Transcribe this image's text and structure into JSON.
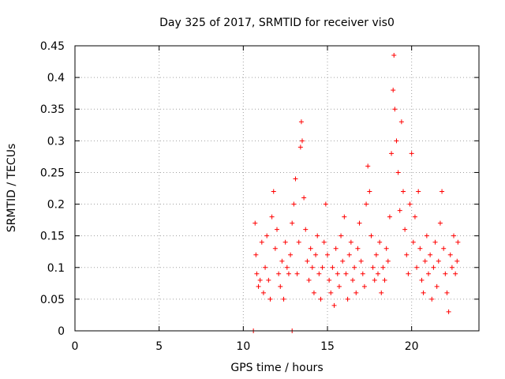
{
  "chart_data": {
    "type": "scatter",
    "title": "Day 325 of 2017, SRMTID for receiver vis0",
    "xlabel": "GPS time / hours",
    "ylabel": "SRMTID / TECUs",
    "xlim": [
      0,
      24
    ],
    "ylim": [
      0,
      0.45
    ],
    "x_ticks": [
      0,
      5,
      10,
      15,
      20
    ],
    "x_tick_labels": [
      "0",
      "5",
      "10",
      "15",
      "20"
    ],
    "y_ticks": [
      0,
      0.05,
      0.1,
      0.15,
      0.2,
      0.25,
      0.3,
      0.35,
      0.4,
      0.45
    ],
    "y_tick_labels": [
      "0",
      "0.05",
      "0.1",
      "0.15",
      "0.2",
      "0.25",
      "0.3",
      "0.35",
      "0.4",
      "0.45"
    ],
    "grid": true,
    "marker": "plus",
    "color": "#ff0000",
    "series": [
      {
        "name": "SRMTID",
        "points": [
          [
            10.6,
            0.0
          ],
          [
            12.9,
            0.0
          ],
          [
            10.7,
            0.17
          ],
          [
            10.75,
            0.12
          ],
          [
            10.8,
            0.09
          ],
          [
            10.9,
            0.07
          ],
          [
            11.0,
            0.08
          ],
          [
            11.1,
            0.14
          ],
          [
            11.2,
            0.06
          ],
          [
            11.3,
            0.1
          ],
          [
            11.4,
            0.15
          ],
          [
            11.5,
            0.08
          ],
          [
            11.6,
            0.05
          ],
          [
            11.7,
            0.18
          ],
          [
            11.8,
            0.22
          ],
          [
            11.9,
            0.13
          ],
          [
            12.0,
            0.16
          ],
          [
            12.1,
            0.09
          ],
          [
            12.2,
            0.07
          ],
          [
            12.3,
            0.11
          ],
          [
            12.4,
            0.05
          ],
          [
            12.5,
            0.14
          ],
          [
            12.6,
            0.1
          ],
          [
            12.7,
            0.09
          ],
          [
            12.8,
            0.12
          ],
          [
            12.9,
            0.17
          ],
          [
            13.0,
            0.2
          ],
          [
            13.1,
            0.24
          ],
          [
            13.2,
            0.09
          ],
          [
            13.3,
            0.14
          ],
          [
            13.4,
            0.29
          ],
          [
            13.45,
            0.33
          ],
          [
            13.5,
            0.3
          ],
          [
            13.6,
            0.21
          ],
          [
            13.7,
            0.16
          ],
          [
            13.8,
            0.11
          ],
          [
            13.9,
            0.08
          ],
          [
            14.0,
            0.13
          ],
          [
            14.1,
            0.1
          ],
          [
            14.2,
            0.06
          ],
          [
            14.3,
            0.12
          ],
          [
            14.4,
            0.15
          ],
          [
            14.5,
            0.09
          ],
          [
            14.6,
            0.05
          ],
          [
            14.7,
            0.1
          ],
          [
            14.8,
            0.14
          ],
          [
            14.9,
            0.2
          ],
          [
            15.0,
            0.12
          ],
          [
            15.1,
            0.08
          ],
          [
            15.2,
            0.06
          ],
          [
            15.3,
            0.1
          ],
          [
            15.4,
            0.04
          ],
          [
            15.5,
            0.13
          ],
          [
            15.6,
            0.09
          ],
          [
            15.7,
            0.07
          ],
          [
            15.8,
            0.15
          ],
          [
            15.9,
            0.11
          ],
          [
            16.0,
            0.18
          ],
          [
            16.1,
            0.09
          ],
          [
            16.2,
            0.05
          ],
          [
            16.3,
            0.12
          ],
          [
            16.4,
            0.14
          ],
          [
            16.5,
            0.08
          ],
          [
            16.6,
            0.1
          ],
          [
            16.7,
            0.06
          ],
          [
            16.8,
            0.13
          ],
          [
            16.9,
            0.17
          ],
          [
            17.0,
            0.11
          ],
          [
            17.1,
            0.09
          ],
          [
            17.2,
            0.07
          ],
          [
            17.3,
            0.2
          ],
          [
            17.4,
            0.26
          ],
          [
            17.5,
            0.22
          ],
          [
            17.6,
            0.15
          ],
          [
            17.7,
            0.1
          ],
          [
            17.8,
            0.08
          ],
          [
            17.9,
            0.12
          ],
          [
            18.0,
            0.09
          ],
          [
            18.1,
            0.14
          ],
          [
            18.2,
            0.06
          ],
          [
            18.3,
            0.1
          ],
          [
            18.4,
            0.08
          ],
          [
            18.5,
            0.13
          ],
          [
            18.6,
            0.11
          ],
          [
            18.7,
            0.18
          ],
          [
            18.8,
            0.28
          ],
          [
            18.9,
            0.38
          ],
          [
            18.95,
            0.435
          ],
          [
            19.0,
            0.35
          ],
          [
            19.1,
            0.3
          ],
          [
            19.2,
            0.25
          ],
          [
            19.3,
            0.19
          ],
          [
            19.4,
            0.33
          ],
          [
            19.5,
            0.22
          ],
          [
            19.6,
            0.16
          ],
          [
            19.7,
            0.12
          ],
          [
            19.8,
            0.09
          ],
          [
            19.9,
            0.2
          ],
          [
            20.0,
            0.28
          ],
          [
            20.1,
            0.14
          ],
          [
            20.2,
            0.18
          ],
          [
            20.3,
            0.1
          ],
          [
            20.4,
            0.22
          ],
          [
            20.5,
            0.13
          ],
          [
            20.6,
            0.08
          ],
          [
            20.7,
            0.06
          ],
          [
            20.8,
            0.11
          ],
          [
            20.9,
            0.15
          ],
          [
            21.0,
            0.09
          ],
          [
            21.1,
            0.12
          ],
          [
            21.2,
            0.05
          ],
          [
            21.3,
            0.1
          ],
          [
            21.4,
            0.14
          ],
          [
            21.5,
            0.07
          ],
          [
            21.6,
            0.11
          ],
          [
            21.7,
            0.17
          ],
          [
            21.8,
            0.22
          ],
          [
            21.9,
            0.13
          ],
          [
            22.0,
            0.09
          ],
          [
            22.1,
            0.06
          ],
          [
            22.2,
            0.03
          ],
          [
            22.3,
            0.12
          ],
          [
            22.4,
            0.1
          ],
          [
            22.5,
            0.15
          ],
          [
            22.6,
            0.09
          ],
          [
            22.7,
            0.11
          ],
          [
            22.75,
            0.14
          ]
        ]
      }
    ]
  }
}
